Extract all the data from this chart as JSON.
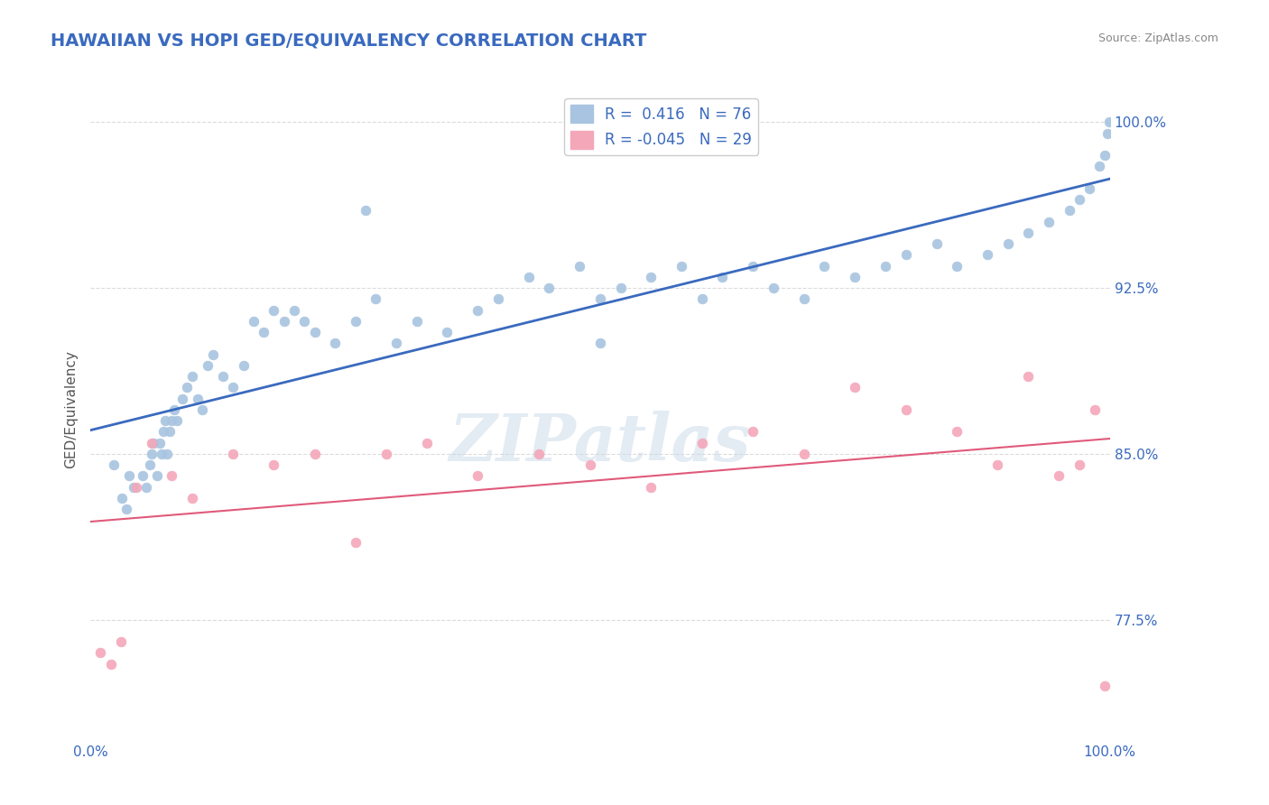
{
  "title": "HAWAIIAN VS HOPI GED/EQUIVALENCY CORRELATION CHART",
  "source_text": "Source: ZipAtlas.com",
  "xlabel": "",
  "ylabel": "GED/Equivalency",
  "xlim": [
    0.0,
    100.0
  ],
  "ylim": [
    72.0,
    102.0
  ],
  "yticks": [
    77.5,
    85.0,
    92.5,
    100.0
  ],
  "ytick_labels": [
    "77.5%",
    "85.0%",
    "92.5%",
    "100.0%"
  ],
  "xticks": [
    0.0,
    100.0
  ],
  "xtick_labels": [
    "0.0%",
    "100.0%"
  ],
  "hawaiian_color": "#a8c4e0",
  "hopi_color": "#f4a7b9",
  "blue_line_color": "#3a6abf",
  "pink_line_color": "#e05a7a",
  "background_color": "#ffffff",
  "grid_color": "#cccccc",
  "title_color": "#3a6abf",
  "legend_R_color": "#3a6abf",
  "r_hawaiian": 0.416,
  "n_hawaiian": 76,
  "r_hopi": -0.045,
  "n_hopi": 29,
  "hawaiian_x": [
    2.3,
    3.1,
    3.5,
    3.8,
    4.2,
    5.1,
    5.5,
    5.8,
    6.0,
    6.2,
    6.5,
    6.8,
    7.0,
    7.2,
    7.3,
    7.5,
    7.8,
    8.0,
    8.2,
    8.5,
    9.0,
    9.5,
    10.0,
    10.5,
    11.0,
    11.5,
    12.0,
    13.0,
    14.0,
    15.0,
    16.0,
    17.0,
    18.0,
    19.0,
    20.0,
    21.0,
    22.0,
    24.0,
    26.0,
    28.0,
    30.0,
    32.0,
    35.0,
    38.0,
    40.0,
    43.0,
    45.0,
    48.0,
    50.0,
    52.0,
    55.0,
    58.0,
    60.0,
    62.0,
    65.0,
    67.0,
    70.0,
    72.0,
    75.0,
    78.0,
    80.0,
    83.0,
    85.0,
    88.0,
    90.0,
    92.0,
    94.0,
    96.0,
    97.0,
    98.0,
    99.0,
    99.5,
    99.8,
    99.9,
    50.0,
    27.0
  ],
  "hawaiian_y": [
    84.5,
    83.0,
    82.5,
    84.0,
    83.5,
    84.0,
    83.5,
    84.5,
    85.0,
    85.5,
    84.0,
    85.5,
    85.0,
    86.0,
    86.5,
    85.0,
    86.0,
    86.5,
    87.0,
    86.5,
    87.5,
    88.0,
    88.5,
    87.5,
    87.0,
    89.0,
    89.5,
    88.5,
    88.0,
    89.0,
    91.0,
    90.5,
    91.5,
    91.0,
    91.5,
    91.0,
    90.5,
    90.0,
    91.0,
    92.0,
    90.0,
    91.0,
    90.5,
    91.5,
    92.0,
    93.0,
    92.5,
    93.5,
    92.0,
    92.5,
    93.0,
    93.5,
    92.0,
    93.0,
    93.5,
    92.5,
    92.0,
    93.5,
    93.0,
    93.5,
    94.0,
    94.5,
    93.5,
    94.0,
    94.5,
    95.0,
    95.5,
    96.0,
    96.5,
    97.0,
    98.0,
    98.5,
    99.5,
    100.0,
    90.0,
    96.0
  ],
  "hopi_x": [
    1.0,
    2.0,
    3.0,
    4.5,
    6.0,
    8.0,
    10.0,
    14.0,
    18.0,
    22.0,
    26.0,
    29.0,
    33.0,
    38.0,
    44.0,
    49.0,
    55.0,
    60.0,
    65.0,
    70.0,
    75.0,
    80.0,
    85.0,
    89.0,
    92.0,
    95.0,
    97.0,
    98.5,
    99.5
  ],
  "hopi_y": [
    76.0,
    75.5,
    76.5,
    83.5,
    85.5,
    84.0,
    83.0,
    85.0,
    84.5,
    85.0,
    81.0,
    85.0,
    85.5,
    84.0,
    85.0,
    84.5,
    83.5,
    85.5,
    86.0,
    85.0,
    88.0,
    87.0,
    86.0,
    84.5,
    88.5,
    84.0,
    84.5,
    87.0,
    74.5
  ],
  "watermark": "ZIPatlas",
  "watermark_color": "#c8d8e8"
}
